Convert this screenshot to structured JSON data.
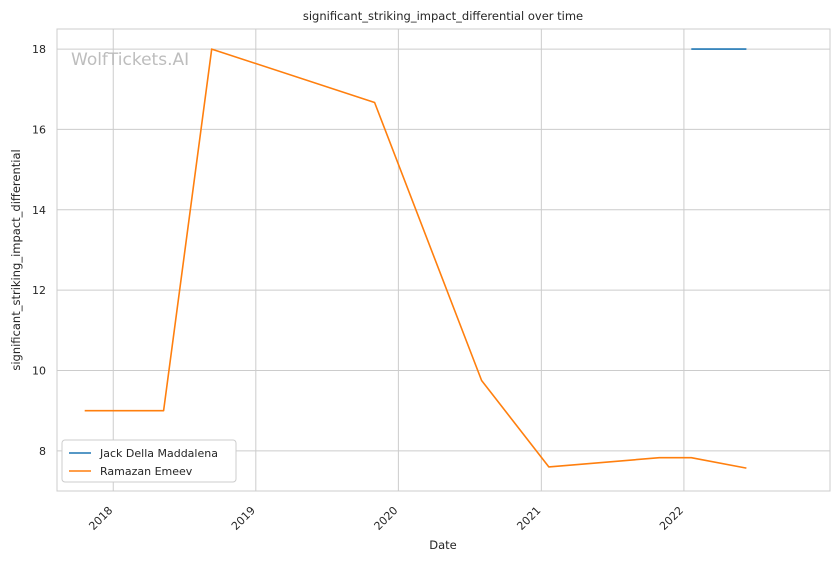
{
  "chart_data": {
    "type": "line",
    "title": "significant_striking_impact_differential over time",
    "xlabel": "Date",
    "ylabel": "significant_striking_impact_differential",
    "watermark": "WolfTickets.AI",
    "x_ticks": [
      "2018",
      "2019",
      "2020",
      "2021",
      "2022"
    ],
    "y_ticks": [
      8,
      10,
      12,
      14,
      16,
      18
    ],
    "xlim": [
      "2017-08-10",
      "2023-01-10"
    ],
    "ylim": [
      7.0,
      18.5
    ],
    "grid": true,
    "legend_position": "bottom-left",
    "series": [
      {
        "name": "Jack Della Maddalena",
        "color": "#1f77b4",
        "points": [
          {
            "x": "2022-01-20",
            "y": 18.0
          },
          {
            "x": "2022-06-10",
            "y": 18.0
          }
        ]
      },
      {
        "name": "Ramazan Emeev",
        "color": "#ff7f0e",
        "points": [
          {
            "x": "2017-10-20",
            "y": 9.0
          },
          {
            "x": "2018-05-10",
            "y": 9.0
          },
          {
            "x": "2018-09-10",
            "y": 18.0
          },
          {
            "x": "2019-11-01",
            "y": 16.67
          },
          {
            "x": "2020-08-01",
            "y": 9.75
          },
          {
            "x": "2021-01-20",
            "y": 7.6
          },
          {
            "x": "2021-10-30",
            "y": 7.83
          },
          {
            "x": "2022-01-20",
            "y": 7.83
          },
          {
            "x": "2022-06-10",
            "y": 7.57
          }
        ]
      }
    ]
  }
}
